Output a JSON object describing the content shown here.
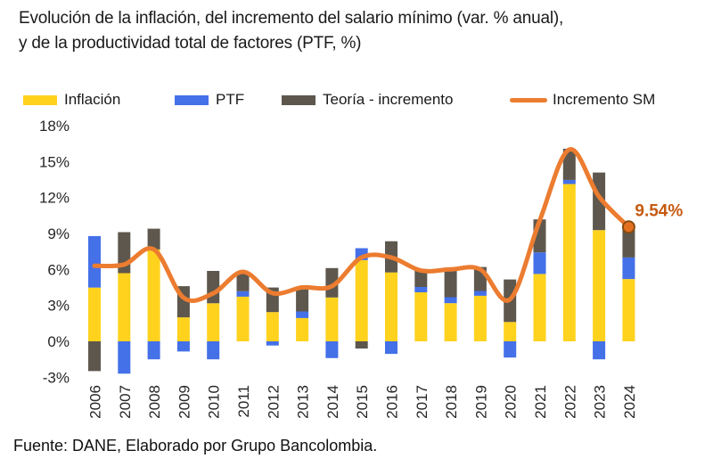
{
  "title": {
    "line1": "Evolución de la inflación, del incremento del salario mínimo (var. % anual),",
    "line2": "y de la productividad total de factores (PTF, %)"
  },
  "legend": {
    "items": [
      {
        "key": "inflacion",
        "label": "Inflación",
        "swatch": "box"
      },
      {
        "key": "ptf",
        "label": "PTF",
        "swatch": "box"
      },
      {
        "key": "teoria",
        "label": "Teoría - incremento",
        "swatch": "box"
      },
      {
        "key": "incremento_sm",
        "label": "Incremento SM",
        "swatch": "line"
      }
    ]
  },
  "source": {
    "text": "Fuente: DANE, Elaborado por Grupo Bancolombia."
  },
  "annotation": {
    "text": "9.54%",
    "color": "#c55a11"
  },
  "colors": {
    "inflacion": "#ffd21e",
    "ptf": "#4470e8",
    "teoria": "#5d574d",
    "incremento_sm": "#ec7c30",
    "dot_fill": "#e2701f",
    "dot_stroke": "#8a4a10",
    "axis_text": "#262626",
    "title_text": "#1a1a1a"
  },
  "chart_data": {
    "type": "bar",
    "subtype": "stacked-bars-with-smooth-line",
    "categories": [
      "2006",
      "2007",
      "2008",
      "2009",
      "2010",
      "2011",
      "2012",
      "2013",
      "2014",
      "2015",
      "2016",
      "2017",
      "2018",
      "2019",
      "2020",
      "2021",
      "2022",
      "2023",
      "2024"
    ],
    "series": [
      {
        "key": "inflacion",
        "name": "Inflación",
        "type": "bar",
        "values": [
          4.48,
          5.69,
          7.67,
          2.0,
          3.17,
          3.73,
          2.44,
          1.94,
          3.66,
          6.77,
          5.75,
          4.09,
          3.18,
          3.8,
          1.61,
          5.62,
          13.12,
          9.28,
          5.2
        ]
      },
      {
        "key": "ptf",
        "name": "PTF",
        "type": "bar",
        "values": [
          4.3,
          -2.7,
          -1.5,
          -0.85,
          -1.5,
          0.45,
          -0.35,
          0.55,
          -1.4,
          1.0,
          -1.05,
          0.45,
          0.5,
          0.4,
          -1.35,
          1.8,
          0.35,
          -1.5,
          1.8
        ]
      },
      {
        "key": "teoria",
        "name": "Teoría - incremento",
        "type": "bar",
        "values": [
          -2.48,
          3.42,
          1.73,
          2.6,
          2.7,
          1.6,
          2.05,
          1.95,
          2.45,
          -0.6,
          2.6,
          1.5,
          2.3,
          2.0,
          3.55,
          2.75,
          2.6,
          4.8,
          2.55
        ]
      },
      {
        "key": "incremento_sm",
        "name": "Incremento SM",
        "type": "line",
        "smooth": true,
        "end_marker": true,
        "end_label": "9.54%",
        "values": [
          6.3,
          6.41,
          7.67,
          3.64,
          4.0,
          5.8,
          4.02,
          4.5,
          4.6,
          7.0,
          7.0,
          5.9,
          6.0,
          6.0,
          3.5,
          10.07,
          16.0,
          12.07,
          9.54
        ]
      }
    ],
    "yticks": [
      18,
      15,
      12,
      9,
      6,
      3,
      0,
      -3
    ],
    "ytick_suffix": "%",
    "ylim": [
      -3.5,
      18.5
    ],
    "grid": false,
    "legend_position": "top"
  }
}
